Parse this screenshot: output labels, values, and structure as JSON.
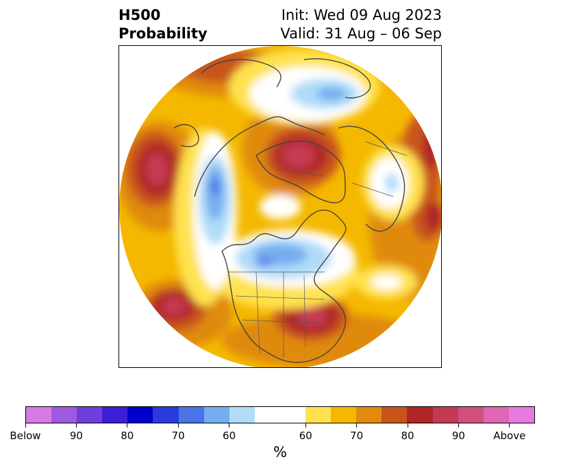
{
  "title": {
    "left_line1": "H500",
    "left_line2": "Probability",
    "right_line1": "Init: Wed 09 Aug 2023",
    "right_line2": "Valid: 31 Aug – 06 Sep"
  },
  "colorbar": {
    "unit": "%",
    "colors": [
      "#d67ae6",
      "#9e5ae0",
      "#6f3fdc",
      "#3b1fd6",
      "#0000cc",
      "#2a3bdb",
      "#4b74e6",
      "#75aef0",
      "#b0dcf8",
      "#ffffff",
      "#ffe24f",
      "#f4b800",
      "#e08a10",
      "#c8541a",
      "#b02525",
      "#c43a52",
      "#cf4f7e",
      "#df67b3",
      "#e77ae0"
    ],
    "tick_labels": [
      "Below",
      "90",
      "80",
      "70",
      "60",
      "60",
      "70",
      "80",
      "90",
      "Above"
    ]
  },
  "map": {
    "projection": "north-polar-stereographic",
    "features": [
      "probability-contours",
      "coastlines",
      "country-borders",
      "us-state-borders"
    ]
  }
}
